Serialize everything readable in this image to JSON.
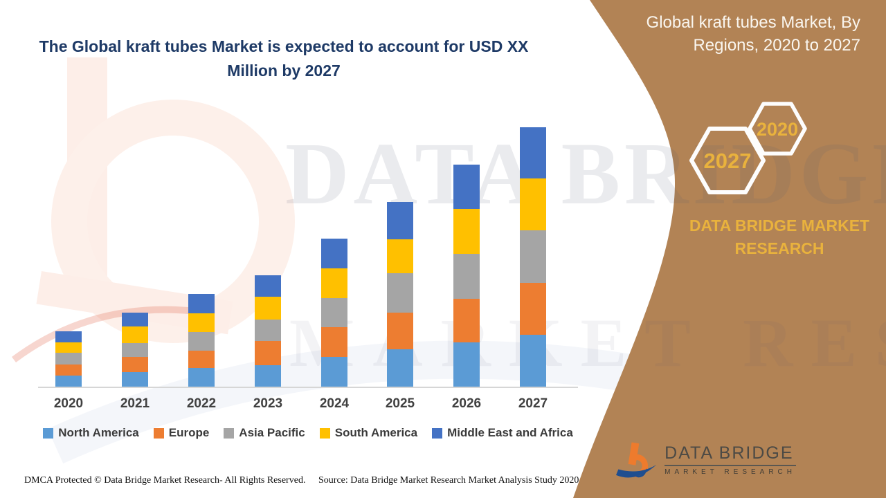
{
  "page": {
    "title": "The Global kraft tubes Market is expected to account for USD XX Million by 2027"
  },
  "side_panel": {
    "heading": "Global kraft tubes Market, By Regions, 2020 to 2027",
    "hexagons": [
      {
        "label": "2027"
      },
      {
        "label": "2020"
      }
    ],
    "brand_heading": "DATA BRIDGE MARKET RESEARCH",
    "panel_color": "#b28355",
    "accent_color": "#e9b23d"
  },
  "watermark": {
    "line1": "DATA BRIDGE",
    "line2": "MARKET RESEARCH"
  },
  "logo": {
    "name": "DATA BRIDGE",
    "tagline": "MARKET RESEARCH"
  },
  "footer": {
    "left": "DMCA Protected © Data Bridge Market Research- All Rights Reserved.",
    "right": "Source: Data Bridge Market Research Market Analysis Study 2020"
  },
  "chart_data": {
    "type": "bar",
    "stacked": true,
    "title": "Global kraft tubes Market, By Regions, 2020 to 2027",
    "xlabel": "",
    "ylabel": "",
    "grid": false,
    "legend_position": "bottom",
    "value_units": "relative market size (no y-axis shown in figure)",
    "categories": [
      "2020",
      "2021",
      "2022",
      "2023",
      "2024",
      "2025",
      "2026",
      "2027"
    ],
    "series": [
      {
        "name": "North America",
        "color": "#5B9BD5",
        "values": [
          16,
          21,
          27,
          31,
          43,
          54,
          64,
          75
        ]
      },
      {
        "name": "Europe",
        "color": "#ED7D31",
        "values": [
          16,
          22,
          25,
          35,
          43,
          53,
          63,
          75
        ]
      },
      {
        "name": "Asia Pacific",
        "color": "#A5A5A5",
        "values": [
          17,
          20,
          27,
          31,
          42,
          57,
          65,
          76
        ]
      },
      {
        "name": "South America",
        "color": "#FFC000",
        "values": [
          15,
          24,
          27,
          33,
          43,
          49,
          65,
          75
        ]
      },
      {
        "name": "Middle East and Africa",
        "color": "#4472C4",
        "values": [
          16,
          20,
          28,
          31,
          43,
          54,
          64,
          74
        ]
      }
    ],
    "totals": [
      80,
      107,
      134,
      161,
      214,
      267,
      321,
      375
    ]
  }
}
